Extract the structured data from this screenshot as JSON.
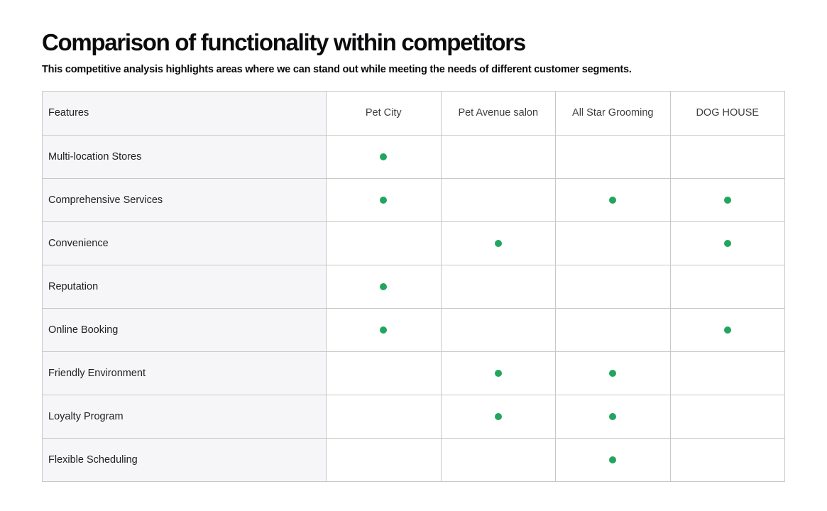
{
  "page": {
    "title": "Comparison of functionality within competitors",
    "subtitle": "This competitive analysis highlights areas where we can stand out while meeting the needs of different customer segments."
  },
  "table": {
    "feature_header": "Features",
    "competitors": [
      "Pet City",
      "Pet Avenue salon",
      "All Star Grooming",
      "DOG HOUSE"
    ],
    "rows": [
      {
        "feature": "Multi-location Stores",
        "marks": [
          true,
          false,
          false,
          false
        ]
      },
      {
        "feature": "Comprehensive Services",
        "marks": [
          true,
          false,
          true,
          true
        ]
      },
      {
        "feature": "Convenience",
        "marks": [
          false,
          true,
          false,
          true
        ]
      },
      {
        "feature": "Reputation",
        "marks": [
          true,
          false,
          false,
          false
        ]
      },
      {
        "feature": "Online Booking",
        "marks": [
          true,
          false,
          false,
          true
        ]
      },
      {
        "feature": "Friendly Environment",
        "marks": [
          false,
          true,
          true,
          false
        ]
      },
      {
        "feature": "Loyalty Program",
        "marks": [
          false,
          true,
          true,
          false
        ]
      },
      {
        "feature": "Flexible Scheduling",
        "marks": [
          false,
          false,
          true,
          false
        ]
      }
    ],
    "colors": {
      "dot": "#22a55e",
      "feature_column_bg": "#f6f6f8",
      "border": "#c8c8c8"
    },
    "mark_icon": "dot-filled"
  }
}
